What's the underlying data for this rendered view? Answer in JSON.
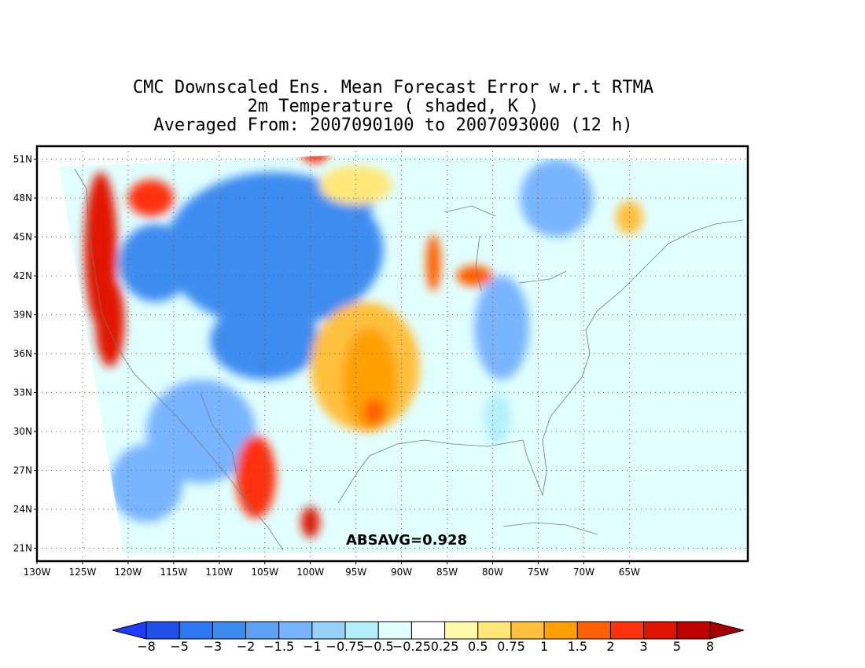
{
  "title": {
    "line1": "CMC Downscaled Ens. Mean Forecast Error w.r.t RTMA",
    "line2": "2m Temperature ( shaded, K )",
    "line3": "Averaged From: 2007090100 to 2007093000 (12 h)"
  },
  "map": {
    "lon_range": [
      -130,
      -52
    ],
    "lat_range": [
      20,
      52
    ],
    "lon_ticks": [
      {
        "value": -130,
        "label": "130W"
      },
      {
        "value": -125,
        "label": "125W"
      },
      {
        "value": -120,
        "label": "120W"
      },
      {
        "value": -115,
        "label": "115W"
      },
      {
        "value": -110,
        "label": "110W"
      },
      {
        "value": -105,
        "label": "105W"
      },
      {
        "value": -100,
        "label": "100W"
      },
      {
        "value": -95,
        "label": "95W"
      },
      {
        "value": -90,
        "label": "90W"
      },
      {
        "value": -85,
        "label": "85W"
      },
      {
        "value": -80,
        "label": "80W"
      },
      {
        "value": -75,
        "label": "75W"
      },
      {
        "value": -70,
        "label": "70W"
      },
      {
        "value": -65,
        "label": "65W"
      }
    ],
    "lat_ticks": [
      {
        "value": 21,
        "label": "21N"
      },
      {
        "value": 24,
        "label": "24N"
      },
      {
        "value": 27,
        "label": "27N"
      },
      {
        "value": 30,
        "label": "30N"
      },
      {
        "value": 33,
        "label": "33N"
      },
      {
        "value": 36,
        "label": "36N"
      },
      {
        "value": 39,
        "label": "39N"
      },
      {
        "value": 42,
        "label": "42N"
      },
      {
        "value": 45,
        "label": "45N"
      },
      {
        "value": 48,
        "label": "48N"
      },
      {
        "value": 51,
        "label": "51N"
      }
    ],
    "grid": true,
    "stat_text": "ABSAVG=0.928",
    "blobs": [
      {
        "lon": -104,
        "lat": 44,
        "rx": 12,
        "ry": 6,
        "value": -3
      },
      {
        "lon": -117,
        "lat": 43,
        "rx": 4,
        "ry": 3,
        "value": -3
      },
      {
        "lon": -105,
        "lat": 37,
        "rx": 6,
        "ry": 3,
        "value": -3
      },
      {
        "lon": -96,
        "lat": 48,
        "rx": 3,
        "ry": 2,
        "value": -3
      },
      {
        "lon": -112,
        "lat": 30,
        "rx": 6,
        "ry": 4,
        "value": -1.5
      },
      {
        "lon": -118,
        "lat": 26,
        "rx": 4,
        "ry": 3,
        "value": -1.5
      },
      {
        "lon": -79,
        "lat": 38,
        "rx": 3,
        "ry": 4,
        "value": -1.5
      },
      {
        "lon": -73,
        "lat": 48,
        "rx": 4,
        "ry": 3,
        "value": -1.5
      },
      {
        "lon": -123,
        "lat": 44,
        "rx": 1.8,
        "ry": 6,
        "value": 3
      },
      {
        "lon": -122,
        "lat": 38.5,
        "rx": 1.6,
        "ry": 3.5,
        "value": 3
      },
      {
        "lon": -117.5,
        "lat": 48,
        "rx": 2.5,
        "ry": 1.4,
        "value": 2
      },
      {
        "lon": -99.5,
        "lat": 51.5,
        "rx": 1.5,
        "ry": 0.8,
        "value": 2
      },
      {
        "lon": -106,
        "lat": 26.5,
        "rx": 2.2,
        "ry": 3.2,
        "value": 2
      },
      {
        "lon": -100,
        "lat": 23,
        "rx": 1,
        "ry": 1.2,
        "value": 3
      },
      {
        "lon": -94,
        "lat": 35,
        "rx": 6,
        "ry": 5,
        "value": 0.75
      },
      {
        "lon": -93.5,
        "lat": 34,
        "rx": 3,
        "ry": 4,
        "value": 1
      },
      {
        "lon": -93,
        "lat": 31.5,
        "rx": 1.2,
        "ry": 1,
        "value": 1.5
      },
      {
        "lon": -86.5,
        "lat": 43,
        "rx": 0.8,
        "ry": 2.2,
        "value": 1.5
      },
      {
        "lon": -82,
        "lat": 42,
        "rx": 2,
        "ry": 0.8,
        "value": 1.5
      },
      {
        "lon": -65,
        "lat": 46.5,
        "rx": 1.5,
        "ry": 1.3,
        "value": 0.75
      },
      {
        "lon": -95,
        "lat": 49,
        "rx": 4,
        "ry": 1.5,
        "value": 0.5
      },
      {
        "lon": -79.5,
        "lat": 31,
        "rx": 1.5,
        "ry": 2,
        "value": -0.75
      }
    ]
  },
  "colorbar": {
    "colors": [
      "#1e3cff",
      "#2050e8",
      "#2d78f0",
      "#3c8cf0",
      "#5ea0f5",
      "#78b4ff",
      "#96d2fa",
      "#b4f0fa",
      "#e1ffff",
      "#ffffff",
      "#fffaaa",
      "#ffe878",
      "#ffc03c",
      "#ffa000",
      "#ff6000",
      "#ff3210",
      "#e11400",
      "#c00000",
      "#a50000"
    ],
    "labels": [
      "−8",
      "−5",
      "−3",
      "−2",
      "−1.5",
      "−1",
      "−0.75",
      "−0.5",
      "−0.25",
      "0.25",
      "0.5",
      "0.75",
      "1",
      "1.5",
      "2",
      "3",
      "5",
      "8"
    ],
    "levels": [
      -8,
      -5,
      -3,
      -2,
      -1.5,
      -1,
      -0.75,
      -0.5,
      -0.25,
      0.25,
      0.5,
      0.75,
      1,
      1.5,
      2,
      3,
      5,
      8
    ]
  }
}
